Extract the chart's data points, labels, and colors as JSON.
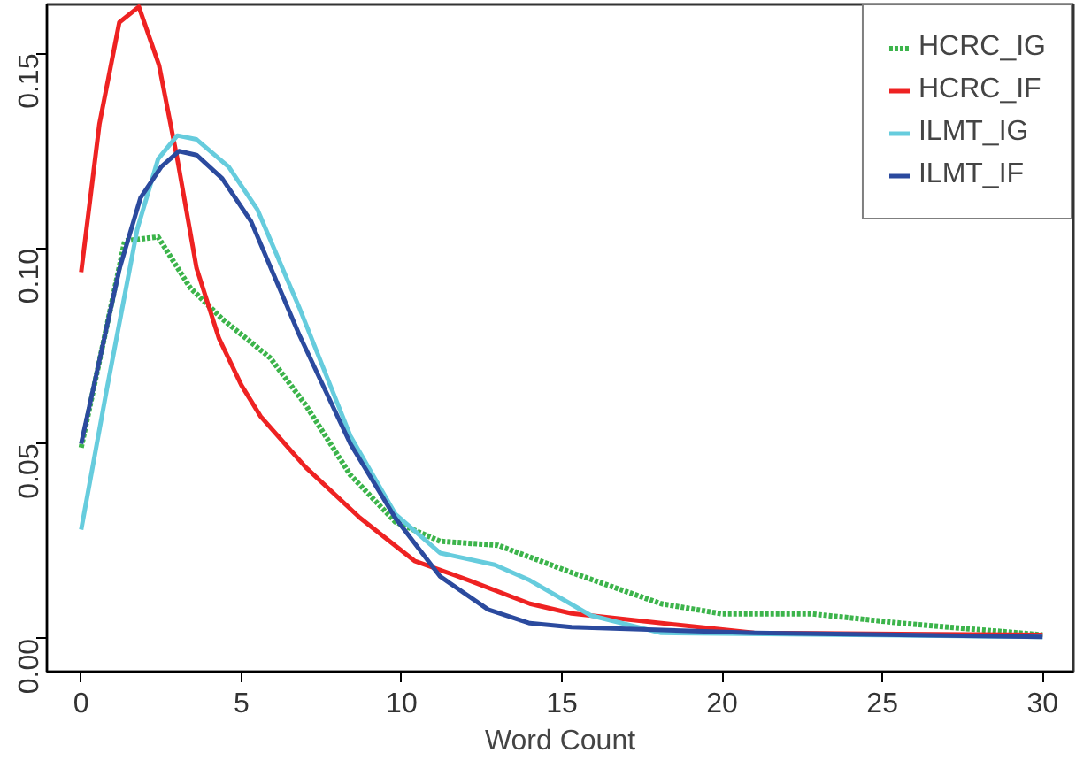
{
  "chart_data": {
    "type": "line",
    "xlabel": "Word Count",
    "xlim": [
      -1.07,
      30.96
    ],
    "ylim": [
      -0.0084,
      0.1626
    ],
    "xticks": [
      0,
      5,
      10,
      15,
      20,
      25,
      30
    ],
    "yticks": [
      {
        "value": 0,
        "label": "0.00"
      },
      {
        "value": 0.05,
        "label": "0.05"
      },
      {
        "value": 0.1,
        "label": "0.10"
      },
      {
        "value": 0.15,
        "label": "0.15"
      }
    ],
    "grid": false,
    "legend": "top right",
    "series": [
      {
        "name": "HCRC_IG",
        "color": "#3cb44b",
        "line_style": "dotted",
        "x": [
          0,
          1.36,
          2.4,
          3.4,
          4.4,
          5.9,
          7.0,
          8.4,
          9.8,
          11.2,
          13.0,
          15.3,
          18.1,
          20,
          22.8,
          25.6,
          30
        ],
        "values": [
          0.049,
          0.102,
          0.103,
          0.09,
          0.082,
          0.072,
          0.06,
          0.042,
          0.03,
          0.025,
          0.024,
          0.017,
          0.009,
          0.0064,
          0.0064,
          0.004,
          0.001
        ]
      },
      {
        "name": "HCRC_IF",
        "color": "#ee2222",
        "line_style": "solid",
        "x": [
          0,
          0.57,
          1.19,
          1.8,
          2.43,
          3.0,
          3.6,
          4.3,
          5.0,
          5.6,
          7.0,
          8.7,
          10.4,
          12.1,
          14,
          15.3,
          21,
          30
        ],
        "values": [
          0.094,
          0.132,
          0.158,
          0.162,
          0.147,
          0.123,
          0.095,
          0.077,
          0.065,
          0.057,
          0.044,
          0.031,
          0.02,
          0.015,
          0.009,
          0.0065,
          0.0015,
          0.001
        ]
      },
      {
        "name": "ILMT_IG",
        "color": "#66ccdd",
        "line_style": "solid",
        "x": [
          0,
          0.8,
          1.75,
          2.4,
          3.0,
          3.6,
          4.6,
          5.5,
          6.8,
          8.4,
          9.8,
          11.2,
          12.9,
          14,
          15.9,
          18.1,
          30
        ],
        "values": [
          0.028,
          0.064,
          0.105,
          0.123,
          0.129,
          0.128,
          0.121,
          0.11,
          0.085,
          0.052,
          0.032,
          0.022,
          0.019,
          0.015,
          0.006,
          0.0015,
          0.0005
        ]
      },
      {
        "name": "ILMT_IF",
        "color": "#2b4a9e",
        "line_style": "solid",
        "x": [
          0,
          1.2,
          1.85,
          2.5,
          3.05,
          3.6,
          4.4,
          5.3,
          6.8,
          8.4,
          9.8,
          11.2,
          12.7,
          14,
          15.3,
          21,
          30
        ],
        "values": [
          0.05,
          0.095,
          0.113,
          0.121,
          0.125,
          0.124,
          0.118,
          0.107,
          0.078,
          0.05,
          0.031,
          0.016,
          0.0075,
          0.004,
          0.003,
          0.0015,
          0.0005
        ]
      }
    ]
  }
}
